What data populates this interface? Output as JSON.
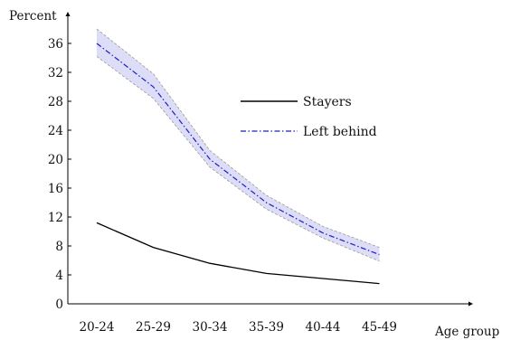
{
  "chart_data": {
    "type": "line",
    "title": "",
    "ylabel": "Percent",
    "xlabel": "Age group",
    "categories": [
      "20-24",
      "25-29",
      "30-34",
      "35-39",
      "40-44",
      "45-49"
    ],
    "ylim": [
      0,
      38
    ],
    "yticks": [
      0,
      4,
      8,
      12,
      16,
      20,
      24,
      28,
      32,
      36
    ],
    "legend_position": "center-right",
    "grid": false,
    "series": [
      {
        "name": "Stayers",
        "values": [
          11.2,
          7.8,
          5.6,
          4.2,
          3.5,
          2.8
        ],
        "lower": [
          11.0,
          7.6,
          5.4,
          4.0,
          3.3,
          2.6
        ],
        "upper": [
          11.4,
          8.0,
          5.8,
          4.4,
          3.7,
          3.0
        ],
        "color": "#000000",
        "style": "solid"
      },
      {
        "name": "Left behind",
        "values": [
          36.0,
          30.0,
          20.0,
          14.0,
          9.8,
          6.8
        ],
        "lower": [
          34.2,
          28.4,
          18.9,
          13.1,
          9.1,
          5.9
        ],
        "upper": [
          38.0,
          31.8,
          21.2,
          15.0,
          10.7,
          7.8
        ],
        "color": "#1f1fbf",
        "band_color": "#d9d9f7",
        "style": "dash-dot"
      }
    ]
  }
}
